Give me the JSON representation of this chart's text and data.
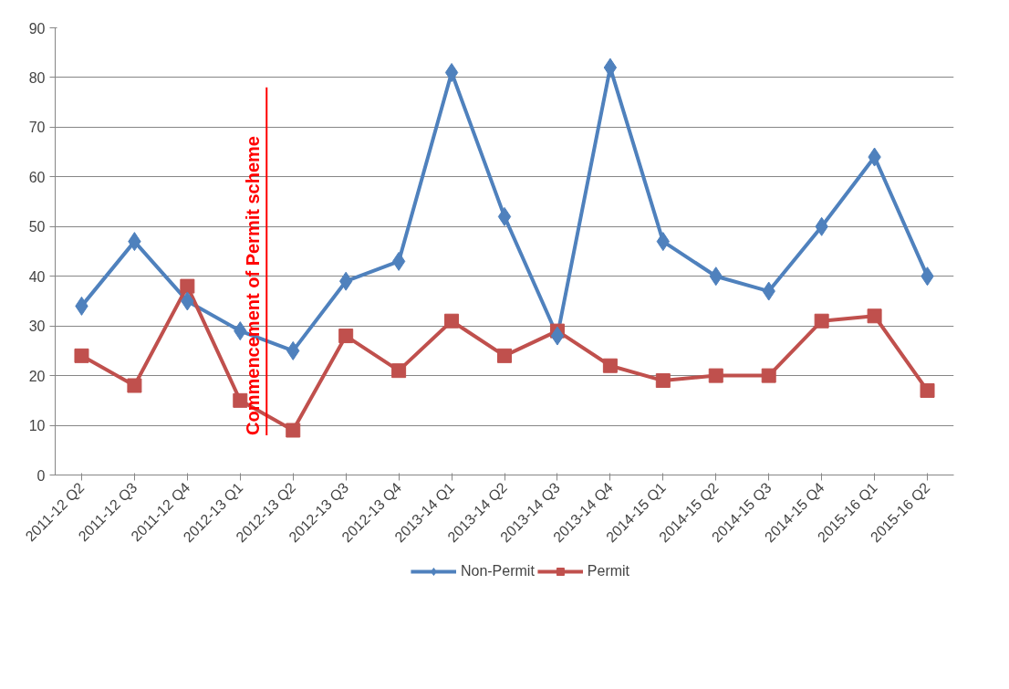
{
  "chart_data": {
    "type": "line",
    "categories": [
      "2011-12 Q2",
      "2011-12 Q3",
      "2011-12 Q4",
      "2012-13 Q1",
      "2012-13 Q2",
      "2012-13 Q3",
      "2012-13 Q4",
      "2013-14 Q1",
      "2013-14 Q2",
      "2013-14 Q3",
      "2013-14 Q4",
      "2014-15 Q1",
      "2014-15 Q2",
      "2014-15 Q3",
      "2014-15 Q4",
      "2015-16 Q1",
      "2015-16 Q2"
    ],
    "series": [
      {
        "name": "Non-Permit",
        "color": "#4f81bd",
        "marker": "diamond",
        "values": [
          34,
          47,
          35,
          29,
          25,
          39,
          43,
          81,
          52,
          28,
          82,
          47,
          40,
          37,
          50,
          64,
          40
        ]
      },
      {
        "name": "Permit",
        "color": "#c0504d",
        "marker": "square",
        "values": [
          24,
          18,
          38,
          15,
          9,
          28,
          21,
          31,
          24,
          29,
          22,
          19,
          20,
          20,
          31,
          32,
          17
        ]
      }
    ],
    "ylim": [
      0,
      90
    ],
    "yticks": [
      0,
      10,
      20,
      30,
      40,
      50,
      60,
      70,
      80,
      90
    ],
    "grid": "y",
    "legend": "bottom",
    "line_style": "solid",
    "annotations": [
      "Commencement of Permit scheme"
    ]
  }
}
